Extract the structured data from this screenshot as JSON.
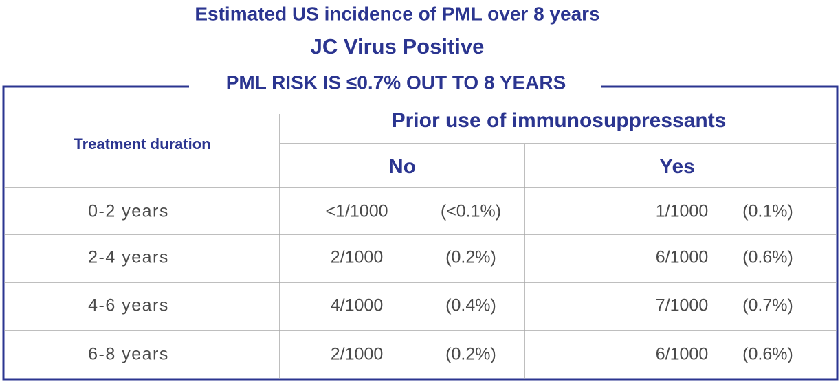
{
  "header": {
    "title": "Estimated US incidence of PML over 8 years",
    "subtitle": "JC Virus Positive"
  },
  "box": {
    "heading": "PML RISK IS ≤0.7% OUT TO 8 YEARS"
  },
  "table": {
    "row_header": "Treatment duration",
    "column_group": "Prior use of immunosuppressants",
    "columns": [
      "No",
      "Yes"
    ],
    "rows": [
      [
        "0-2 years",
        "<1/1000",
        "(<0.1%)",
        "1/1000",
        "(0.1%)"
      ],
      [
        "2-4 years",
        "2/1000",
        "(0.2%)",
        "6/1000",
        "(0.6%)"
      ],
      [
        "4-6 years",
        "4/1000",
        "(0.4%)",
        "7/1000",
        "(0.7%)"
      ],
      [
        "6-8 years",
        "2/1000",
        "(0.2%)",
        "6/1000",
        "(0.6%)"
      ]
    ]
  }
}
